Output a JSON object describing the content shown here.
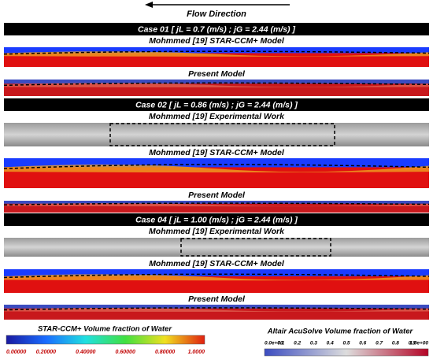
{
  "header": {
    "flow_direction": "Flow Direction"
  },
  "cases": [
    {
      "title": "Case 01 [ jL = 0.7 (m/s) ; jG = 2.44 (m/s) ]",
      "panels": [
        "Mohmmed [19] STAR-CCM+ Model",
        "Present Model"
      ]
    },
    {
      "title": "Case 02 [ jL = 0.86 (m/s) ; jG = 2.44 (m/s) ]",
      "panels": [
        "Mohmmed [19] Experimental Work",
        "Mohmmed [19] STAR-CCM+ Model",
        "Present Model"
      ]
    },
    {
      "title": "Case 04 [ jL = 1.00 (m/s) ; jG = 2.44 (m/s) ]",
      "panels": [
        "Mohmmed [19] Experimental Work",
        "Mohmmed [19] STAR-CCM+ Model",
        "Present Model"
      ]
    }
  ],
  "legends": [
    {
      "title": "STAR-CCM+ Volume fraction of Water",
      "ticks": [
        "0.00000",
        "0.20000",
        "0.40000",
        "0.60000",
        "0.80000",
        "1.0000"
      ]
    },
    {
      "title": "Altair AcuSolve Volume fraction of Water",
      "ticks": [
        "0.0e+00",
        "0.1",
        "0.2",
        "0.3",
        "0.4",
        "0.5",
        "0.6",
        "0.7",
        "0.8",
        "0.9",
        "1.0e+00"
      ]
    }
  ]
}
